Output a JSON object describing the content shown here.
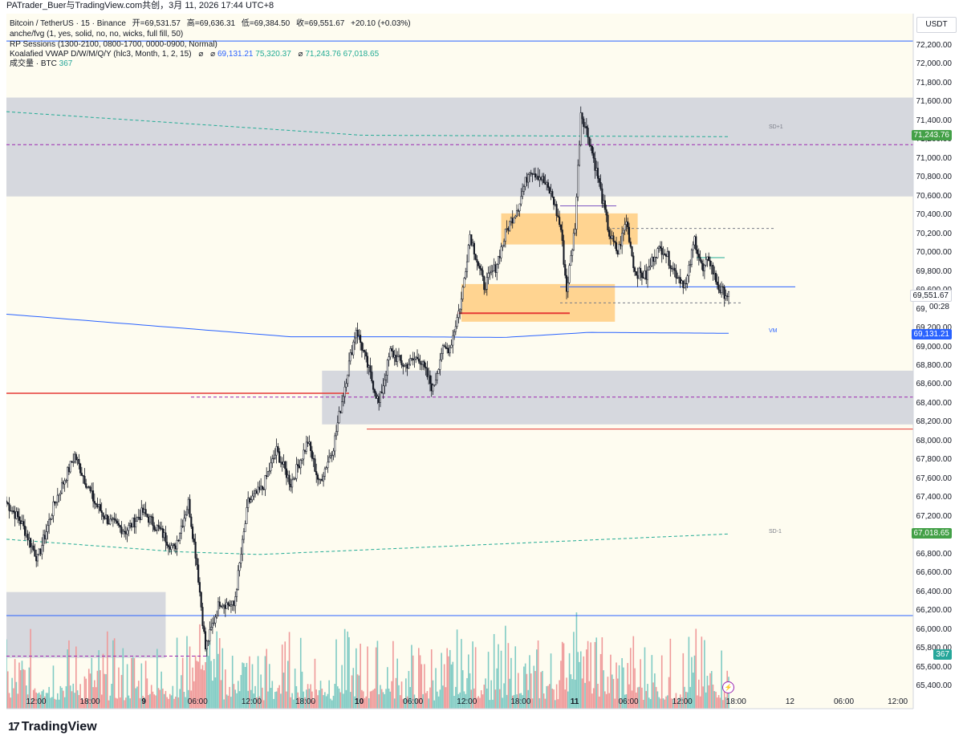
{
  "header": {
    "attribution": "PATrader_Buer与TradingView.com共创，3月 11, 2026 17:44 UTC+8"
  },
  "legend": {
    "symbol": "Bitcoin / TetherUS · 15 · Binance",
    "open": "开=69,531.57",
    "high": "高=69,636.31",
    "low": "低=69,384.50",
    "close": "收=69,551.67",
    "change": "+20.10 (+0.03%)",
    "fvg": "anche/fvg (1, yes, solid, no, no, wicks, full fill, 50)",
    "sessions": "RP Sessions (1300-2100, 0800-1700, 0000-0900, Normal)",
    "vwap_name": "Koalafied VWAP D/W/M/Q/Y  (hlc3, Month, 1, 2, 15)",
    "vwap_sym1": "⌀",
    "vwap_sym2": "⌀",
    "vwap_val1": "69,131.21",
    "vwap_val2": "75,320.37",
    "vwap_sym3": "⌀",
    "vwap_val3": "71,243.76",
    "vwap_val4": "67,018.65",
    "volume_name": "成交量 · BTC",
    "volume_val": "367"
  },
  "price_axis": {
    "currency": "USDT",
    "ticks": [
      "72,200.00",
      "72,000.00",
      "71,800.00",
      "71,600.00",
      "71,400.00",
      "71,200.00",
      "71,000.00",
      "70,800.00",
      "70,600.00",
      "70,400.00",
      "70,200.00",
      "70,000.00",
      "69,800.00",
      "69,600.00",
      "69,400.00",
      "69,200.00",
      "69,000.00",
      "68,800.00",
      "68,600.00",
      "68,400.00",
      "68,200.00",
      "68,000.00",
      "67,800.00",
      "67,600.00",
      "67,400.00",
      "67,200.00",
      "67,000.00",
      "66,800.00",
      "66,600.00",
      "66,400.00",
      "66,200.00",
      "66,000.00",
      "65,800.00",
      "65,600.00",
      "65,400.00"
    ],
    "last_price": "69,551.67",
    "countdown": "00:28",
    "vwap_tag": "69,131.21",
    "sd_plus_tag": "71,243.76",
    "sd_minus_tag": "67,018.65",
    "volume_tag": "367"
  },
  "time_axis": {
    "labels": [
      {
        "text": "12:00",
        "bold": false
      },
      {
        "text": "18:00",
        "bold": false
      },
      {
        "text": "9",
        "bold": true
      },
      {
        "text": "06:00",
        "bold": false
      },
      {
        "text": "12:00",
        "bold": false
      },
      {
        "text": "18:00",
        "bold": false
      },
      {
        "text": "10",
        "bold": true
      },
      {
        "text": "06:00",
        "bold": false
      },
      {
        "text": "12:00",
        "bold": false
      },
      {
        "text": "18:00",
        "bold": false
      },
      {
        "text": "11",
        "bold": true
      },
      {
        "text": "06:00",
        "bold": false
      },
      {
        "text": "12:00",
        "bold": false
      },
      {
        "text": "18:00",
        "bold": false
      },
      {
        "text": "12",
        "bold": false
      },
      {
        "text": "06:00",
        "bold": false
      },
      {
        "text": "12:00",
        "bold": false
      }
    ]
  },
  "annotations": {
    "sd_plus": "SD+1",
    "sd_minus": "SD-1",
    "vwap": "VM"
  },
  "branding": {
    "logo_text": "TradingView",
    "logo_mark": "17"
  },
  "colors": {
    "up": "#131722",
    "down": "#131722",
    "background": "#fefcf0",
    "vwap": "#2962ff",
    "bands": "#22ab94",
    "fvg_bear": "#d1d4dc",
    "fvg_orange": "#ffcc80",
    "level_red": "#e53935",
    "vol_up": "#80cbc4",
    "vol_down": "#ef9a9a",
    "tag_green": "#43a047",
    "tag_blue": "#2962ff",
    "tag_teal": "#26a69a"
  },
  "chart_data": {
    "type": "candlestick",
    "symbol": "BTC/USDT",
    "interval": "15",
    "y_range": [
      65350,
      72350
    ],
    "anchors": [
      {
        "t": 0,
        "p": 67350
      },
      {
        "t": 10,
        "p": 67150
      },
      {
        "t": 22,
        "p": 66750
      },
      {
        "t": 34,
        "p": 67350
      },
      {
        "t": 48,
        "p": 67850
      },
      {
        "t": 62,
        "p": 67350
      },
      {
        "t": 72,
        "p": 67150
      },
      {
        "t": 84,
        "p": 67050
      },
      {
        "t": 96,
        "p": 67250
      },
      {
        "t": 108,
        "p": 67050
      },
      {
        "t": 118,
        "p": 66850
      },
      {
        "t": 128,
        "p": 67350
      },
      {
        "t": 134,
        "p": 66700
      },
      {
        "t": 140,
        "p": 65800
      },
      {
        "t": 150,
        "p": 66300
      },
      {
        "t": 160,
        "p": 66250
      },
      {
        "t": 170,
        "p": 67350
      },
      {
        "t": 180,
        "p": 67500
      },
      {
        "t": 190,
        "p": 67900
      },
      {
        "t": 200,
        "p": 67550
      },
      {
        "t": 212,
        "p": 68000
      },
      {
        "t": 220,
        "p": 67550
      },
      {
        "t": 230,
        "p": 67950
      },
      {
        "t": 240,
        "p": 68750
      },
      {
        "t": 246,
        "p": 69200
      },
      {
        "t": 256,
        "p": 68700
      },
      {
        "t": 262,
        "p": 68400
      },
      {
        "t": 270,
        "p": 68950
      },
      {
        "t": 280,
        "p": 68800
      },
      {
        "t": 290,
        "p": 68900
      },
      {
        "t": 300,
        "p": 68550
      },
      {
        "t": 306,
        "p": 68950
      },
      {
        "t": 312,
        "p": 69000
      },
      {
        "t": 320,
        "p": 69500
      },
      {
        "t": 326,
        "p": 70200
      },
      {
        "t": 336,
        "p": 69650
      },
      {
        "t": 344,
        "p": 69850
      },
      {
        "t": 352,
        "p": 70250
      },
      {
        "t": 360,
        "p": 70500
      },
      {
        "t": 368,
        "p": 70900
      },
      {
        "t": 376,
        "p": 70800
      },
      {
        "t": 384,
        "p": 70600
      },
      {
        "t": 390,
        "p": 70250
      },
      {
        "t": 394,
        "p": 69600
      },
      {
        "t": 400,
        "p": 70300
      },
      {
        "t": 404,
        "p": 71500
      },
      {
        "t": 410,
        "p": 71200
      },
      {
        "t": 416,
        "p": 70800
      },
      {
        "t": 420,
        "p": 70500
      },
      {
        "t": 424,
        "p": 70200
      },
      {
        "t": 430,
        "p": 70000
      },
      {
        "t": 436,
        "p": 70350
      },
      {
        "t": 442,
        "p": 69800
      },
      {
        "t": 450,
        "p": 69750
      },
      {
        "t": 456,
        "p": 70000
      },
      {
        "t": 462,
        "p": 70050
      },
      {
        "t": 470,
        "p": 69800
      },
      {
        "t": 478,
        "p": 69650
      },
      {
        "t": 484,
        "p": 70150
      },
      {
        "t": 490,
        "p": 69800
      },
      {
        "t": 494,
        "p": 69950
      },
      {
        "t": 498,
        "p": 69750
      },
      {
        "t": 502,
        "p": 69600
      },
      {
        "t": 508,
        "p": 69550
      }
    ],
    "volume_scale": "relative",
    "levels": {
      "vwap": 69131.21,
      "sd_plus_1": 71243.76,
      "sd_minus_1": 67018.65,
      "blue_level_top": 72250,
      "blue_level_mid": 69640,
      "blue_level_low": 66150,
      "red_level_1": 68510,
      "red_level_2": 68130,
      "red_level_3": 69360,
      "purple_level_1": 71150,
      "purple_level_2": 68470,
      "purple_level_3": 65720,
      "ob_dashed_1": 70260,
      "ob_dashed_2": 69470
    },
    "zones": [
      {
        "type": "fvg_gray",
        "t0": 0,
        "t1": 525,
        "top": 71650,
        "bottom": 70600
      },
      {
        "type": "fvg_gray",
        "t0": 222,
        "t1": 525,
        "top": 68750,
        "bottom": 68180
      },
      {
        "type": "fvg_gray",
        "t0": 0,
        "t1": 112,
        "top": 66400,
        "bottom": 65700
      },
      {
        "type": "fvg_orange",
        "t0": 348,
        "t1": 444,
        "top": 70420,
        "bottom": 70090
      },
      {
        "type": "fvg_orange",
        "t0": 320,
        "t1": 428,
        "top": 69670,
        "bottom": 69270
      }
    ],
    "time_labels": [
      "12:00",
      "18:00",
      "9",
      "06:00",
      "12:00",
      "18:00",
      "10",
      "06:00",
      "12:00",
      "18:00",
      "11",
      "06:00",
      "12:00",
      "18:00",
      "12",
      "06:00",
      "12:00"
    ]
  }
}
